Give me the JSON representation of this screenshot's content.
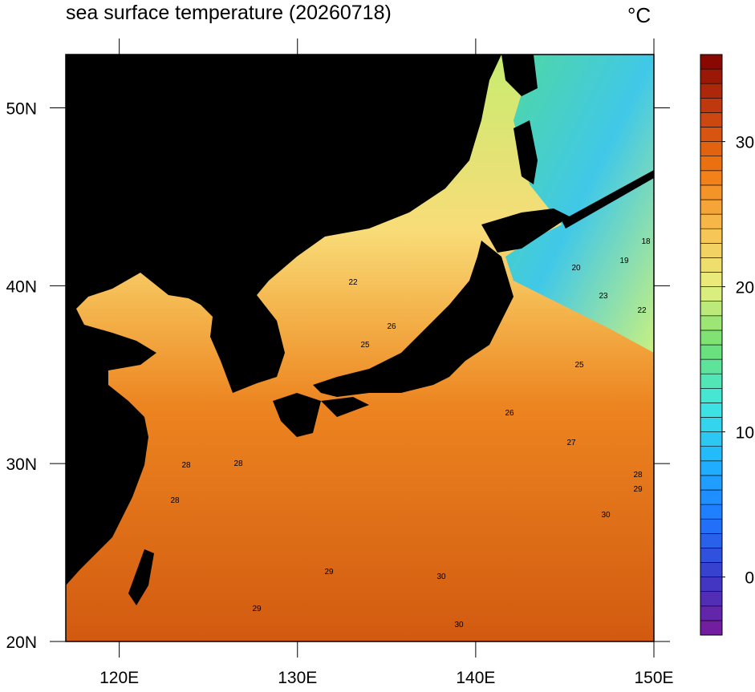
{
  "map_data": {
    "title": "sea surface temperature (20260718)",
    "unit": "°C",
    "xlim": [
      117,
      150
    ],
    "ylim": [
      20,
      53
    ],
    "xticks": [
      {
        "value": 120,
        "label": "120E"
      },
      {
        "value": 130,
        "label": "130E"
      },
      {
        "value": 140,
        "label": "140E"
      },
      {
        "value": 150,
        "label": "150E"
      }
    ],
    "yticks": [
      {
        "value": 20,
        "label": "20N"
      },
      {
        "value": 30,
        "label": "30N"
      },
      {
        "value": 40,
        "label": "40N"
      },
      {
        "value": 50,
        "label": "50N"
      }
    ],
    "colorbar": {
      "ylim": [
        -4,
        36
      ],
      "yticks": [
        0,
        10,
        20,
        30
      ],
      "colors": [
        "#7a1a9a",
        "#3a3ac8",
        "#1e78ff",
        "#20b4ff",
        "#40e8e0",
        "#70e070",
        "#e8f080",
        "#f8c050",
        "#f07810",
        "#c84010",
        "#800000"
      ]
    },
    "contour_labels": [
      29,
      29,
      30,
      30,
      30,
      29,
      28,
      27,
      26,
      25,
      22,
      23,
      20,
      18,
      19,
      28,
      28,
      28,
      25,
      26,
      22
    ]
  }
}
